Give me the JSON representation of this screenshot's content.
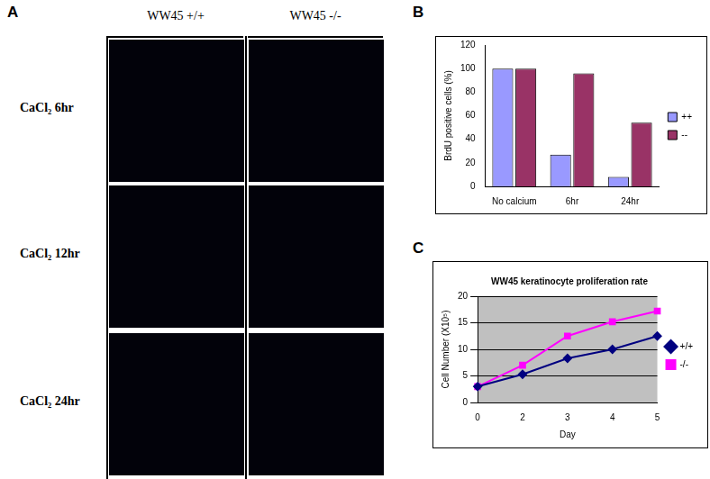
{
  "panel_labels": [
    "A",
    "B",
    "C"
  ],
  "image_grid": {
    "columns": [
      "WW45 +/+",
      "WW45 -/-"
    ],
    "rows": [
      "CaCl₂ 6hr",
      "CaCl₂ 12hr",
      "CaCl₂ 24hr"
    ]
  },
  "chart_data": [
    {
      "type": "bar",
      "y_label": "BrdU positive cells (%)",
      "categories": [
        "No calcium",
        "6hr",
        "24hr"
      ],
      "series": [
        {
          "name": "++",
          "color": "#9999ff",
          "values": [
            100,
            27,
            8
          ]
        },
        {
          "name": "--",
          "color": "#993366",
          "values": [
            100,
            96,
            54
          ]
        }
      ],
      "ylim": [
        0,
        120
      ],
      "yticks": [
        0,
        20,
        40,
        60,
        80,
        100,
        120
      ],
      "grid": false,
      "legend": "right"
    },
    {
      "type": "line",
      "title": "WW45 keratinocyte proliferation rate",
      "x_label": "Day",
      "y_label": "Cell Number (X10⁵)",
      "categories": [
        "0",
        "2",
        "3",
        "4",
        "5"
      ],
      "series": [
        {
          "name": "+/+",
          "color": "#000080",
          "marker": "diamond",
          "values": [
            3,
            5.3,
            8.3,
            10,
            12.5
          ]
        },
        {
          "name": "-/-",
          "color": "#ff00ff",
          "marker": "square",
          "values": [
            3,
            7,
            12.5,
            15.2,
            17.2
          ]
        }
      ],
      "ylim": [
        0,
        20
      ],
      "yticks": [
        0,
        5,
        10,
        15,
        20
      ],
      "grid": true,
      "legend": "right"
    }
  ]
}
